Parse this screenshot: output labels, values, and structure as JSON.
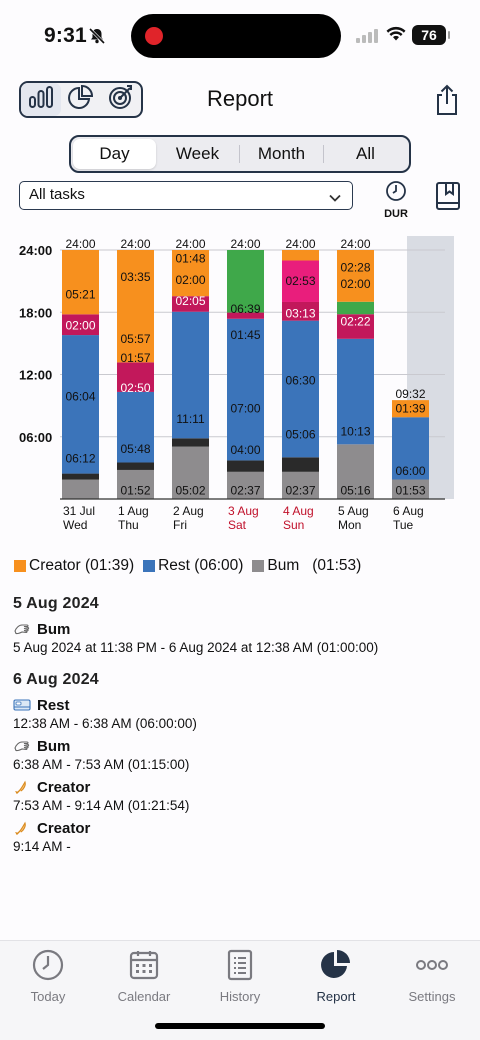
{
  "status_bar": {
    "time": "9:31",
    "battery": "76"
  },
  "header": {
    "title": "Report",
    "view_icons": [
      "bar-chart-icon",
      "pie-chart-icon",
      "target-icon"
    ],
    "share_icon": "share-icon"
  },
  "period_tabs": [
    "Day",
    "Week",
    "Month",
    "All"
  ],
  "active_period": "Day",
  "task_filter": {
    "value": "All tasks"
  },
  "dur_label": "DUR",
  "colors": {
    "creator": "#f7901e",
    "rest": "#3b74ba",
    "bum": "#8e8c8e",
    "magenta": "#c2185b",
    "green": "#3fa84a",
    "pink": "#e91e7c",
    "dark": "#2a2a2a",
    "red_text": "#c0102a",
    "highlight": "#d9dce3"
  },
  "chart_data": {
    "type": "bar",
    "y_axis": {
      "ticks": [
        "24:00",
        "18:00",
        "12:00",
        "06:00"
      ],
      "range_hours": [
        0,
        24
      ]
    },
    "days": [
      {
        "line1": "31 Jul",
        "line2": "Wed",
        "weekend": false,
        "top_label": "24:00",
        "stack": [
          {
            "c": "bum",
            "h": 1.87,
            "label": ""
          },
          {
            "c": "dark",
            "h": 0.58,
            "label": ""
          },
          {
            "c": "rest",
            "h": 13.35,
            "label": "06:12 / 06:04"
          },
          {
            "c": "magenta",
            "h": 2.0,
            "label": "02:00"
          },
          {
            "c": "creator",
            "h": 6.2,
            "label": "05:21"
          }
        ],
        "labels": [
          {
            "t": "06:12",
            "at": 3.9
          },
          {
            "t": "06:04",
            "at": 9.9
          },
          {
            "t": "02:00",
            "at": 16.7
          },
          {
            "t": "05:21",
            "at": 19.7
          }
        ]
      },
      {
        "line1": "1 Aug",
        "line2": "Thu",
        "weekend": false,
        "top_label": "24:00",
        "stack": [
          {
            "c": "bum",
            "h": 2.8,
            "label": ""
          },
          {
            "c": "dark",
            "h": 0.72,
            "label": ""
          },
          {
            "c": "rest",
            "h": 6.8,
            "label": ""
          },
          {
            "c": "magenta",
            "h": 2.85,
            "label": ""
          },
          {
            "c": "creator",
            "h": 10.83,
            "label": ""
          }
        ],
        "labels": [
          {
            "t": "01:52",
            "at": 0.8
          },
          {
            "t": "05:48",
            "at": 4.8
          },
          {
            "t": "02:50",
            "at": 10.7
          },
          {
            "t": "01:57",
            "at": 13.6
          },
          {
            "t": "05:57",
            "at": 15.4
          },
          {
            "t": "03:35",
            "at": 21.4
          }
        ]
      },
      {
        "line1": "2 Aug",
        "line2": "Fri",
        "weekend": false,
        "top_label": "24:00",
        "stack": [
          {
            "c": "bum",
            "h": 5.05,
            "label": ""
          },
          {
            "c": "dark",
            "h": 0.8,
            "label": ""
          },
          {
            "c": "rest",
            "h": 12.2,
            "label": ""
          },
          {
            "c": "magenta",
            "h": 1.5,
            "label": ""
          },
          {
            "c": "creator",
            "h": 4.45,
            "label": ""
          }
        ],
        "labels": [
          {
            "t": "05:02",
            "at": 0.8
          },
          {
            "t": "11:11",
            "at": 7.7
          },
          {
            "t": "02:05",
            "at": 19.1
          },
          {
            "t": "02:00",
            "at": 21.1
          },
          {
            "t": "01:48",
            "at": 23.2
          }
        ]
      },
      {
        "line1": "3 Aug",
        "line2": "Sat",
        "weekend": true,
        "top_label": "24:00",
        "stack": [
          {
            "c": "bum",
            "h": 2.62,
            "label": ""
          },
          {
            "c": "dark",
            "h": 1.1,
            "label": ""
          },
          {
            "c": "rest",
            "h": 13.65,
            "label": ""
          },
          {
            "c": "magenta",
            "h": 0.6,
            "label": ""
          },
          {
            "c": "green",
            "h": 6.03,
            "label": ""
          }
        ],
        "labels": [
          {
            "t": "02:37",
            "at": 0.8
          },
          {
            "t": "04:00",
            "at": 4.7
          },
          {
            "t": "07:00",
            "at": 8.7
          },
          {
            "t": "01:45",
            "at": 15.8
          },
          {
            "t": "06:39",
            "at": 18.3
          }
        ]
      },
      {
        "line1": "4 Aug",
        "line2": "Sun",
        "weekend": true,
        "top_label": "24:00",
        "stack": [
          {
            "c": "bum",
            "h": 2.62,
            "label": ""
          },
          {
            "c": "dark",
            "h": 1.4,
            "label": ""
          },
          {
            "c": "rest",
            "h": 13.17,
            "label": ""
          },
          {
            "c": "magenta",
            "h": 1.8,
            "label": ""
          },
          {
            "c": "pink",
            "h": 4.0,
            "label": ""
          },
          {
            "c": "creator",
            "h": 1.01,
            "label": ""
          }
        ],
        "labels": [
          {
            "t": "02:37",
            "at": 0.8
          },
          {
            "t": "05:06",
            "at": 6.2
          },
          {
            "t": "06:30",
            "at": 11.4
          },
          {
            "t": "03:13",
            "at": 17.9
          },
          {
            "t": "02:53",
            "at": 21.0
          }
        ]
      },
      {
        "line1": "5 Aug",
        "line2": "Mon",
        "weekend": false,
        "top_label": "24:00",
        "stack": [
          {
            "c": "bum",
            "h": 5.27,
            "label": ""
          },
          {
            "c": "rest",
            "h": 10.17,
            "label": ""
          },
          {
            "c": "magenta",
            "h": 2.37,
            "label": ""
          },
          {
            "c": "green",
            "h": 1.2,
            "label": ""
          },
          {
            "c": "creator",
            "h": 4.99,
            "label": ""
          }
        ],
        "labels": [
          {
            "t": "05:16",
            "at": 0.8
          },
          {
            "t": "10:13",
            "at": 6.5
          },
          {
            "t": "02:22",
            "at": 17.1
          },
          {
            "t": "02:00",
            "at": 20.7
          },
          {
            "t": "02:28",
            "at": 22.3
          }
        ]
      },
      {
        "line1": "6 Aug",
        "line2": "Tue",
        "weekend": false,
        "highlight": true,
        "top_label": "09:32",
        "stack": [
          {
            "c": "bum",
            "h": 1.88,
            "label": ""
          },
          {
            "c": "rest",
            "h": 6.0,
            "label": ""
          },
          {
            "c": "creator",
            "h": 1.65,
            "label": ""
          }
        ],
        "labels": [
          {
            "t": "01:53",
            "at": 0.8
          },
          {
            "t": "06:00",
            "at": 2.7
          },
          {
            "t": "01:39",
            "at": 8.7
          }
        ]
      }
    ]
  },
  "legend": [
    {
      "key": "creator",
      "text": "Creator (01:39)"
    },
    {
      "key": "rest",
      "text": "Rest (06:00)"
    },
    {
      "key": "bum",
      "text": "Bum   (01:53)"
    }
  ],
  "sessions": {
    "day1": {
      "date": "5 Aug 2024",
      "entries": [
        {
          "icon": "hand-icon",
          "name": "Bum",
          "range": "5 Aug 2024 at 11:38 PM - 6 Aug 2024 at 12:38 AM (01:00:00)"
        }
      ]
    },
    "day2": {
      "date": "6 Aug 2024",
      "entries": [
        {
          "icon": "bed-icon",
          "name": "Rest",
          "range": "12:38 AM - 6:38 AM (06:00:00)"
        },
        {
          "icon": "hand-icon",
          "name": "Bum",
          "range": "6:38 AM - 7:53 AM (01:15:00)"
        },
        {
          "icon": "quill-icon",
          "name": "Creator",
          "range": "7:53 AM - 9:14 AM (01:21:54)"
        },
        {
          "icon": "quill-icon",
          "name": "Creator",
          "range": "9:14 AM -"
        }
      ]
    }
  },
  "tabbar": [
    {
      "label": "Today",
      "icon": "clock-icon"
    },
    {
      "label": "Calendar",
      "icon": "calendar-icon"
    },
    {
      "label": "History",
      "icon": "document-icon"
    },
    {
      "label": "Report",
      "icon": "pie-chart-icon"
    },
    {
      "label": "Settings",
      "icon": "more-icon"
    }
  ],
  "active_tab": "Report"
}
